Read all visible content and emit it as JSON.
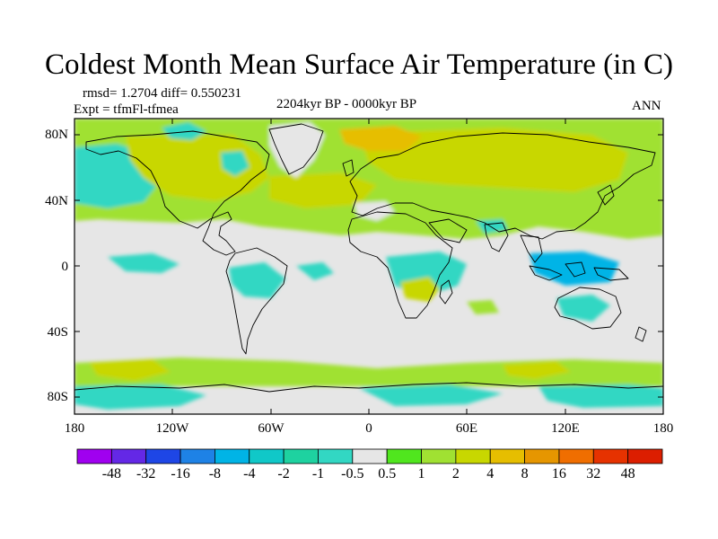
{
  "title": "Coldest Month Mean Surface Air Temperature (in C)",
  "stats": "rmsd= 1.2704 diff= 0.550231",
  "expt": "Expt = tfmFl-tfmea",
  "period": "2204kyr BP - 0000kyr BP",
  "season": "ANN",
  "lat_labels": [
    "80N",
    "40N",
    "0",
    "40S",
    "80S"
  ],
  "lon_labels": [
    "180",
    "120W",
    "60W",
    "0",
    "60E",
    "120E",
    "180"
  ],
  "colorbar": {
    "labels": [
      "-48",
      "-32",
      "-16",
      "-8",
      "-4",
      "-2",
      "-1",
      "-0.5",
      "0.5",
      "1",
      "2",
      "4",
      "8",
      "16",
      "32",
      "48"
    ],
    "colors": [
      "#a000f0",
      "#6428e6",
      "#1e46e6",
      "#1e82e6",
      "#00b4e6",
      "#10c8c8",
      "#1ed2a0",
      "#32d7c3",
      "#e6e6e6",
      "#50e61e",
      "#a0e132",
      "#c8d700",
      "#e6be00",
      "#e69600",
      "#f06e00",
      "#e63200",
      "#dc1e00"
    ]
  },
  "colors": {
    "land_outline": "#000000",
    "no_change": "#e6e6e6",
    "warm_light": "#a0e132",
    "warm_mid": "#c8d700",
    "warm_strong": "#e6be00",
    "cool_light": "#32d7c3",
    "cool_mid": "#00b4e6"
  }
}
